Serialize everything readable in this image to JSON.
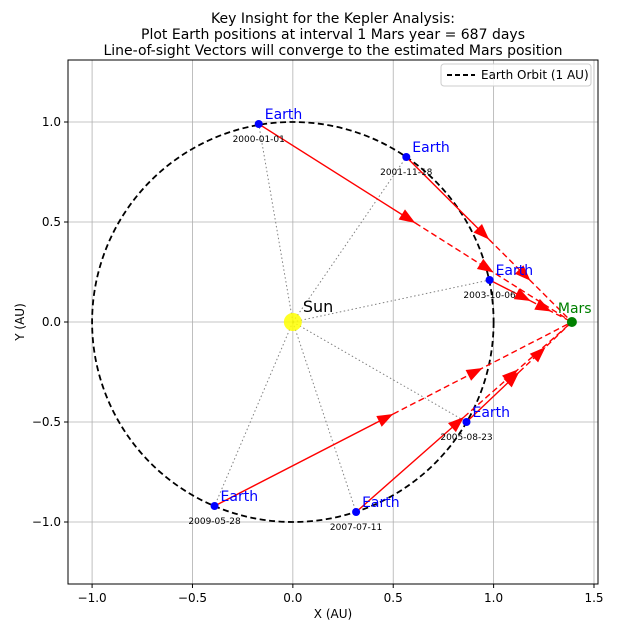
{
  "chart_data": {
    "type": "scatter",
    "title_lines": [
      "Key Insight for the Kepler Analysis:",
      "Plot Earth positions at interval 1 Mars year = 687 days",
      "Line-of-sight Vectors will converge to the estimated Mars position"
    ],
    "xlabel": "X (AU)",
    "ylabel": "Y (AU)",
    "xlim": [
      -1.12,
      1.52
    ],
    "ylim": [
      -1.31,
      1.31
    ],
    "xticks": [
      -1.0,
      -0.5,
      0.0,
      0.5,
      1.0,
      1.5
    ],
    "xtick_labels": [
      "−1.0",
      "−0.5",
      "0.0",
      "0.5",
      "1.0",
      "1.5"
    ],
    "yticks": [
      -1.0,
      -0.5,
      0.0,
      0.5,
      1.0
    ],
    "ytick_labels": [
      "−1.0",
      "−0.5",
      "0.0",
      "0.5",
      "1.0"
    ],
    "grid": true,
    "legend": {
      "placement": "top-right",
      "entries": [
        "Earth Orbit (1 AU)"
      ]
    },
    "orbit": {
      "radius": 1.0,
      "color": "#000000",
      "style": "dashed"
    },
    "sun": {
      "label": "Sun",
      "x": 0.0,
      "y": 0.0,
      "color": "#ffff00"
    },
    "mars": {
      "label": "Mars",
      "x": 1.39,
      "y": 0.0,
      "color": "#008000"
    },
    "earth_positions": [
      {
        "label": "Earth",
        "date": "2000-01-01",
        "x": -0.17,
        "y": 0.99
      },
      {
        "label": "Earth",
        "date": "2001-11-18",
        "x": 0.565,
        "y": 0.825
      },
      {
        "label": "Earth",
        "date": "2003-10-06",
        "x": 0.98,
        "y": 0.21
      },
      {
        "label": "Earth",
        "date": "2005-08-23",
        "x": 0.865,
        "y": -0.5
      },
      {
        "label": "Earth",
        "date": "2007-07-11",
        "x": 0.315,
        "y": -0.95
      },
      {
        "label": "Earth",
        "date": "2009-05-28",
        "x": -0.39,
        "y": -0.92
      }
    ],
    "colors": {
      "earth": "#0000ff",
      "sightline": "#ff0000",
      "sun_spoke": "#808080",
      "grid": "#b0b0b0"
    }
  }
}
